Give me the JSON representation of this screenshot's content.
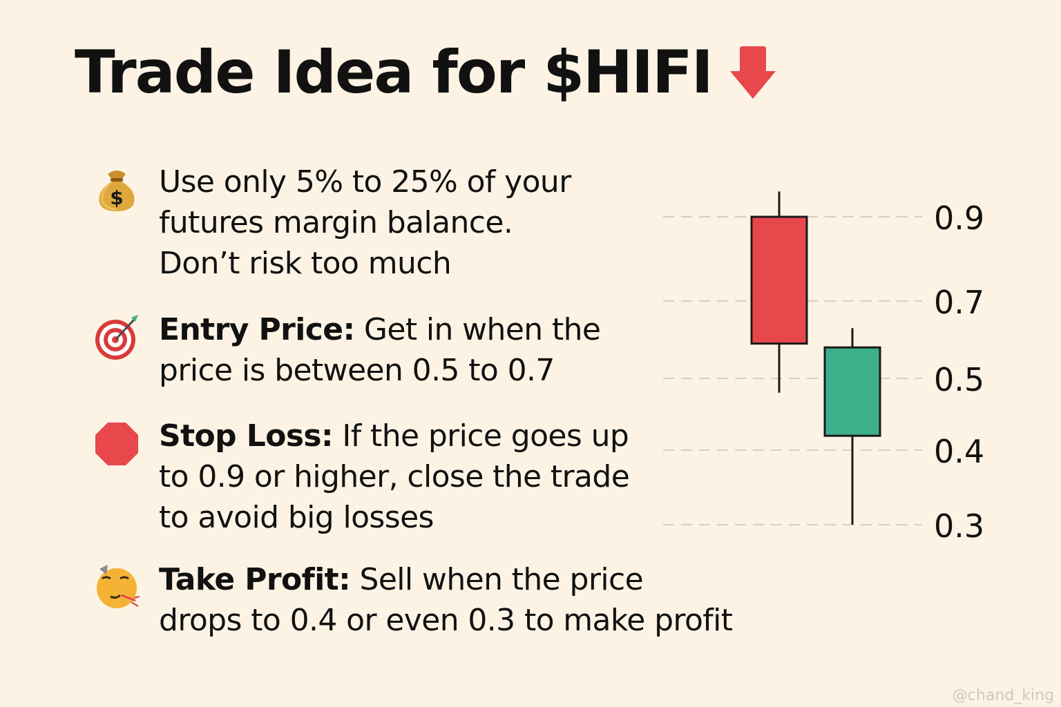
{
  "title": {
    "text": "Trade Idea for $HIFI",
    "arrow_icon": "red-down-arrow-icon",
    "arrow_color": "#e8474b"
  },
  "items": [
    {
      "icon": "money-bag-icon",
      "lead": "",
      "lines": [
        "Use only 5% to 25% of your",
        "futures margin balance.",
        "Don’t risk too much"
      ]
    },
    {
      "icon": "target-icon",
      "lead": "Entry Price:",
      "lines": [
        " Get in when the",
        "price is between 0.5 to 0.7"
      ]
    },
    {
      "icon": "stop-sign-icon",
      "lead": "Stop Loss:",
      "lines": [
        " If the price goes up",
        "to 0.9 or higher, close the trade",
        "to avoid big losses"
      ]
    },
    {
      "icon": "party-face-icon",
      "lead": "Take Profit:",
      "lines": [
        " Sell when the price",
        "drops to 0.4 or even 0.3 to make profit"
      ]
    }
  ],
  "chart_data": {
    "type": "candlestick",
    "y_tick_labels": [
      "0.9",
      "0.7",
      "0.5",
      "0.4",
      "0.3"
    ],
    "candles": [
      {
        "color": "#e8474b",
        "high": 0.96,
        "open": 0.9,
        "close": 0.59,
        "low": 0.48
      },
      {
        "color": "#3daf8a",
        "high": 0.63,
        "open": 0.58,
        "close": 0.42,
        "low": 0.3
      }
    ]
  },
  "watermark": "@chand_king"
}
